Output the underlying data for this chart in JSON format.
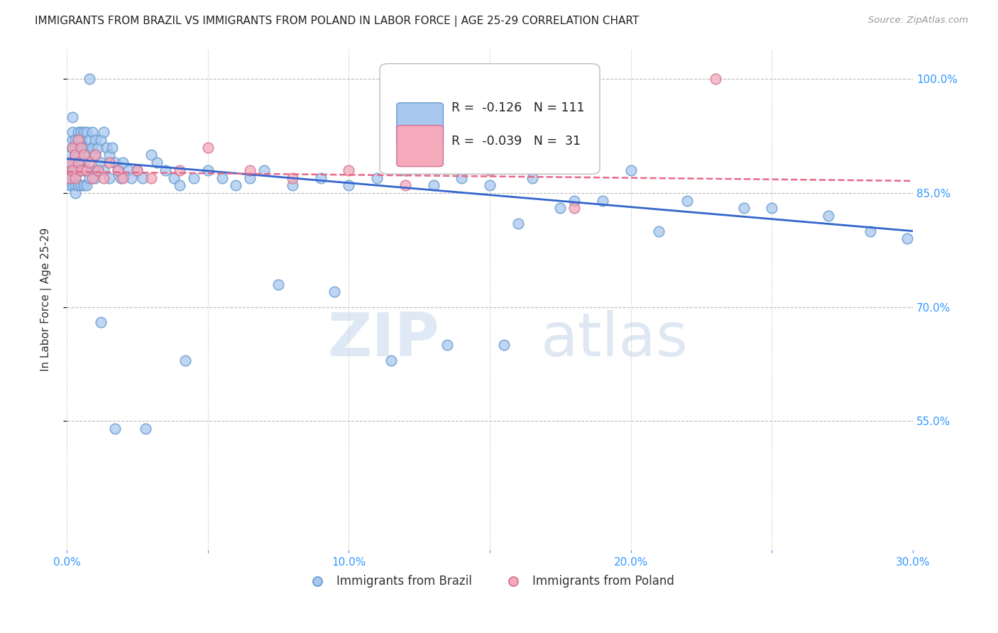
{
  "title": "IMMIGRANTS FROM BRAZIL VS IMMIGRANTS FROM POLAND IN LABOR FORCE | AGE 25-29 CORRELATION CHART",
  "source": "Source: ZipAtlas.com",
  "ylabel": "In Labor Force | Age 25-29",
  "xlim": [
    0.0,
    0.3
  ],
  "ylim": [
    0.38,
    1.04
  ],
  "yticks": [
    0.55,
    0.7,
    0.85,
    1.0
  ],
  "yticklabels": [
    "55.0%",
    "70.0%",
    "85.0%",
    "100.0%"
  ],
  "brazil_color": "#A8C8F0",
  "brazil_edge": "#6699CC",
  "poland_color": "#F4AABB",
  "poland_edge": "#D07090",
  "brazil_R": -0.126,
  "brazil_N": 111,
  "poland_R": -0.039,
  "poland_N": 31,
  "brazil_line_color": "#3366CC",
  "poland_line_color": "#E8698A",
  "watermark_zip": "ZIP",
  "watermark_atlas": "atlas",
  "title_color": "#222222",
  "axis_color": "#3399FF",
  "grid_color": "#BBBBBB",
  "background_color": "#FFFFFF",
  "brazil_x": [
    0.001,
    0.001,
    0.001,
    0.001,
    0.002,
    0.002,
    0.002,
    0.002,
    0.002,
    0.002,
    0.002,
    0.002,
    0.003,
    0.003,
    0.003,
    0.003,
    0.003,
    0.003,
    0.003,
    0.003,
    0.004,
    0.004,
    0.004,
    0.004,
    0.004,
    0.004,
    0.004,
    0.005,
    0.005,
    0.005,
    0.005,
    0.005,
    0.005,
    0.006,
    0.006,
    0.006,
    0.006,
    0.006,
    0.007,
    0.007,
    0.007,
    0.007,
    0.008,
    0.008,
    0.008,
    0.009,
    0.009,
    0.009,
    0.01,
    0.01,
    0.01,
    0.011,
    0.011,
    0.012,
    0.012,
    0.013,
    0.013,
    0.014,
    0.015,
    0.015,
    0.016,
    0.017,
    0.018,
    0.019,
    0.02,
    0.022,
    0.023,
    0.025,
    0.027,
    0.03,
    0.032,
    0.035,
    0.038,
    0.04,
    0.045,
    0.05,
    0.055,
    0.06,
    0.065,
    0.07,
    0.08,
    0.09,
    0.1,
    0.11,
    0.12,
    0.13,
    0.14,
    0.15,
    0.165,
    0.18,
    0.2,
    0.22,
    0.24,
    0.16,
    0.175,
    0.19,
    0.21,
    0.25,
    0.27,
    0.285,
    0.298,
    0.155,
    0.135,
    0.115,
    0.095,
    0.075,
    0.042,
    0.028,
    0.017,
    0.012,
    0.008
  ],
  "brazil_y": [
    0.88,
    0.9,
    0.87,
    0.86,
    0.92,
    0.91,
    0.89,
    0.88,
    0.87,
    0.86,
    0.93,
    0.95,
    0.92,
    0.91,
    0.9,
    0.89,
    0.88,
    0.87,
    0.86,
    0.85,
    0.93,
    0.92,
    0.91,
    0.9,
    0.89,
    0.88,
    0.86,
    0.93,
    0.92,
    0.91,
    0.89,
    0.88,
    0.86,
    0.93,
    0.91,
    0.89,
    0.88,
    0.86,
    0.93,
    0.91,
    0.88,
    0.86,
    0.92,
    0.9,
    0.87,
    0.93,
    0.91,
    0.88,
    0.92,
    0.9,
    0.87,
    0.91,
    0.88,
    0.92,
    0.89,
    0.93,
    0.88,
    0.91,
    0.9,
    0.87,
    0.91,
    0.89,
    0.88,
    0.87,
    0.89,
    0.88,
    0.87,
    0.88,
    0.87,
    0.9,
    0.89,
    0.88,
    0.87,
    0.86,
    0.87,
    0.88,
    0.87,
    0.86,
    0.87,
    0.88,
    0.86,
    0.87,
    0.86,
    0.87,
    0.88,
    0.86,
    0.87,
    0.86,
    0.87,
    0.84,
    0.88,
    0.84,
    0.83,
    0.81,
    0.83,
    0.84,
    0.8,
    0.83,
    0.82,
    0.8,
    0.79,
    0.65,
    0.65,
    0.63,
    0.72,
    0.73,
    0.63,
    0.54,
    0.54,
    0.68,
    1.0
  ],
  "poland_x": [
    0.001,
    0.001,
    0.002,
    0.002,
    0.003,
    0.003,
    0.004,
    0.004,
    0.005,
    0.005,
    0.006,
    0.007,
    0.008,
    0.009,
    0.01,
    0.011,
    0.013,
    0.015,
    0.018,
    0.02,
    0.025,
    0.03,
    0.04,
    0.05,
    0.065,
    0.08,
    0.1,
    0.12,
    0.15,
    0.18,
    0.23
  ],
  "poland_y": [
    0.89,
    0.87,
    0.91,
    0.88,
    0.9,
    0.87,
    0.92,
    0.89,
    0.91,
    0.88,
    0.9,
    0.88,
    0.89,
    0.87,
    0.9,
    0.88,
    0.87,
    0.89,
    0.88,
    0.87,
    0.88,
    0.87,
    0.88,
    0.91,
    0.88,
    0.87,
    0.88,
    0.86,
    0.88,
    0.83,
    1.0
  ],
  "brazil_line_x": [
    0.0,
    0.3
  ],
  "brazil_line_y": [
    0.895,
    0.8
  ],
  "poland_line_x": [
    0.0,
    0.3
  ],
  "poland_line_y": [
    0.878,
    0.866
  ]
}
